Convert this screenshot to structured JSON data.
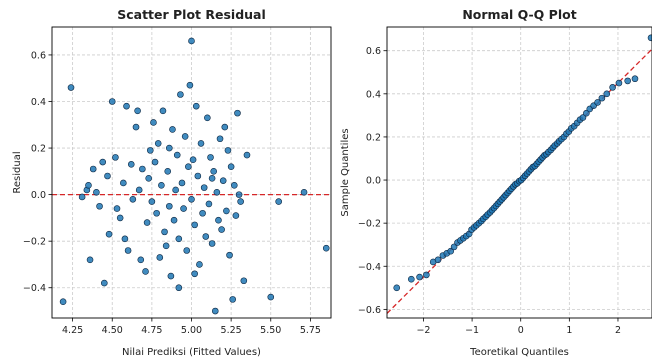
{
  "chart_data": [
    {
      "type": "scatter",
      "title": "Scatter Plot Residual",
      "xlabel": "Nilai Prediksi (Fitted Values)",
      "ylabel": "Residual",
      "xlim": [
        4.12,
        5.88
      ],
      "ylim": [
        -0.53,
        0.72
      ],
      "xticks": [
        "4.25",
        "4.50",
        "4.75",
        "5.00",
        "5.25",
        "5.50",
        "5.75"
      ],
      "xtick_values": [
        4.25,
        4.5,
        4.75,
        5.0,
        5.25,
        5.5,
        5.75
      ],
      "yticks": [
        "−0.4",
        "−0.2",
        "0.0",
        "0.2",
        "0.4",
        "0.6"
      ],
      "ytick_values": [
        -0.4,
        -0.2,
        0.0,
        0.2,
        0.4,
        0.6
      ],
      "grid": true,
      "reference_line": {
        "y": 0.0,
        "style": "dashed",
        "color": "#d62728"
      },
      "marker_color": "#1f77b4",
      "points": [
        {
          "x": 4.19,
          "y": -0.46
        },
        {
          "x": 4.24,
          "y": 0.46
        },
        {
          "x": 4.31,
          "y": -0.01
        },
        {
          "x": 4.34,
          "y": 0.02
        },
        {
          "x": 4.35,
          "y": 0.04
        },
        {
          "x": 4.36,
          "y": -0.28
        },
        {
          "x": 4.38,
          "y": 0.11
        },
        {
          "x": 4.4,
          "y": 0.01
        },
        {
          "x": 4.42,
          "y": -0.05
        },
        {
          "x": 4.44,
          "y": 0.14
        },
        {
          "x": 4.45,
          "y": -0.38
        },
        {
          "x": 4.47,
          "y": 0.08
        },
        {
          "x": 4.48,
          "y": -0.17
        },
        {
          "x": 4.5,
          "y": 0.4
        },
        {
          "x": 4.52,
          "y": 0.16
        },
        {
          "x": 4.53,
          "y": -0.06
        },
        {
          "x": 4.55,
          "y": -0.1
        },
        {
          "x": 4.57,
          "y": 0.05
        },
        {
          "x": 4.59,
          "y": 0.38
        },
        {
          "x": 4.6,
          "y": -0.24
        },
        {
          "x": 4.62,
          "y": 0.13
        },
        {
          "x": 4.63,
          "y": -0.02
        },
        {
          "x": 4.65,
          "y": 0.29
        },
        {
          "x": 4.66,
          "y": 0.36
        },
        {
          "x": 4.68,
          "y": -0.28
        },
        {
          "x": 4.69,
          "y": 0.11
        },
        {
          "x": 4.71,
          "y": -0.33
        },
        {
          "x": 4.72,
          "y": -0.12
        },
        {
          "x": 4.73,
          "y": 0.07
        },
        {
          "x": 4.74,
          "y": 0.19
        },
        {
          "x": 4.75,
          "y": -0.03
        },
        {
          "x": 4.76,
          "y": 0.31
        },
        {
          "x": 4.77,
          "y": 0.14
        },
        {
          "x": 4.78,
          "y": -0.08
        },
        {
          "x": 4.79,
          "y": 0.22
        },
        {
          "x": 4.8,
          "y": -0.27
        },
        {
          "x": 4.81,
          "y": 0.04
        },
        {
          "x": 4.82,
          "y": 0.36
        },
        {
          "x": 4.83,
          "y": -0.16
        },
        {
          "x": 4.84,
          "y": -0.22
        },
        {
          "x": 4.85,
          "y": 0.1
        },
        {
          "x": 4.86,
          "y": 0.2
        },
        {
          "x": 4.87,
          "y": -0.35
        },
        {
          "x": 4.88,
          "y": 0.28
        },
        {
          "x": 4.89,
          "y": -0.11
        },
        {
          "x": 4.9,
          "y": 0.02
        },
        {
          "x": 4.91,
          "y": 0.17
        },
        {
          "x": 4.92,
          "y": -0.19
        },
        {
          "x": 4.93,
          "y": 0.43
        },
        {
          "x": 4.94,
          "y": 0.05
        },
        {
          "x": 4.95,
          "y": -0.06
        },
        {
          "x": 4.96,
          "y": 0.25
        },
        {
          "x": 4.97,
          "y": -0.24
        },
        {
          "x": 4.98,
          "y": 0.12
        },
        {
          "x": 4.99,
          "y": 0.47
        },
        {
          "x": 5.0,
          "y": 0.66
        },
        {
          "x": 5.0,
          "y": -0.02
        },
        {
          "x": 5.01,
          "y": 0.15
        },
        {
          "x": 5.02,
          "y": -0.13
        },
        {
          "x": 5.03,
          "y": 0.38
        },
        {
          "x": 5.04,
          "y": 0.08
        },
        {
          "x": 5.05,
          "y": -0.3
        },
        {
          "x": 5.06,
          "y": 0.22
        },
        {
          "x": 5.07,
          "y": -0.08
        },
        {
          "x": 5.08,
          "y": 0.03
        },
        {
          "x": 5.09,
          "y": -0.18
        },
        {
          "x": 5.1,
          "y": 0.33
        },
        {
          "x": 5.11,
          "y": -0.04
        },
        {
          "x": 5.12,
          "y": 0.16
        },
        {
          "x": 5.13,
          "y": -0.21
        },
        {
          "x": 5.14,
          "y": 0.1
        },
        {
          "x": 5.15,
          "y": -0.5
        },
        {
          "x": 5.16,
          "y": 0.01
        },
        {
          "x": 5.17,
          "y": -0.11
        },
        {
          "x": 5.18,
          "y": 0.24
        },
        {
          "x": 5.19,
          "y": -0.15
        },
        {
          "x": 5.2,
          "y": 0.06
        },
        {
          "x": 5.21,
          "y": 0.29
        },
        {
          "x": 5.22,
          "y": -0.07
        },
        {
          "x": 5.23,
          "y": 0.19
        },
        {
          "x": 5.24,
          "y": -0.26
        },
        {
          "x": 5.25,
          "y": 0.12
        },
        {
          "x": 5.26,
          "y": -0.45
        },
        {
          "x": 5.27,
          "y": 0.04
        },
        {
          "x": 5.28,
          "y": -0.09
        },
        {
          "x": 5.29,
          "y": 0.35
        },
        {
          "x": 5.3,
          "y": 0.0
        },
        {
          "x": 5.31,
          "y": -0.03
        },
        {
          "x": 5.33,
          "y": -0.37
        },
        {
          "x": 5.35,
          "y": 0.17
        },
        {
          "x": 5.5,
          "y": -0.44
        },
        {
          "x": 5.55,
          "y": -0.03
        },
        {
          "x": 5.71,
          "y": 0.01
        },
        {
          "x": 5.85,
          "y": -0.23
        },
        {
          "x": 4.58,
          "y": -0.19
        },
        {
          "x": 4.67,
          "y": 0.02
        },
        {
          "x": 4.92,
          "y": -0.4
        },
        {
          "x": 5.02,
          "y": -0.34
        },
        {
          "x": 4.86,
          "y": -0.05
        },
        {
          "x": 5.13,
          "y": 0.07
        }
      ]
    },
    {
      "type": "scatter",
      "title": "Normal Q-Q Plot",
      "xlabel": "Teoretikal Quantiles",
      "ylabel": "Sample Quantiles",
      "xlim": [
        -2.75,
        2.7
      ],
      "ylim": [
        -0.64,
        0.71
      ],
      "xticks": [
        "−2",
        "−1",
        "0",
        "1",
        "2"
      ],
      "xtick_values": [
        -2,
        -1,
        0,
        1,
        2
      ],
      "yticks": [
        "−0.6",
        "−0.4",
        "−0.2",
        "0.0",
        "0.2",
        "0.4",
        "0.6"
      ],
      "ytick_values": [
        -0.6,
        -0.4,
        -0.2,
        0.0,
        0.2,
        0.4,
        0.6
      ],
      "grid": true,
      "reference_line": {
        "slope": 0.225,
        "intercept": 0.0,
        "style": "dashed",
        "color": "#d62728"
      },
      "marker_color": "#1f77b4",
      "points": [
        {
          "x": -2.55,
          "y": -0.5
        },
        {
          "x": -2.25,
          "y": -0.46
        },
        {
          "x": -2.08,
          "y": -0.45
        },
        {
          "x": -1.94,
          "y": -0.44
        },
        {
          "x": -1.8,
          "y": -0.38
        },
        {
          "x": -1.7,
          "y": -0.37
        },
        {
          "x": -1.6,
          "y": -0.35
        },
        {
          "x": -1.52,
          "y": -0.34
        },
        {
          "x": -1.44,
          "y": -0.33
        },
        {
          "x": -1.37,
          "y": -0.31
        },
        {
          "x": -1.3,
          "y": -0.29
        },
        {
          "x": -1.24,
          "y": -0.28
        },
        {
          "x": -1.18,
          "y": -0.27
        },
        {
          "x": -1.12,
          "y": -0.26
        },
        {
          "x": -1.06,
          "y": -0.25
        },
        {
          "x": -1.01,
          "y": -0.23
        },
        {
          "x": -0.96,
          "y": -0.22
        },
        {
          "x": -0.91,
          "y": -0.21
        },
        {
          "x": -0.86,
          "y": -0.2
        },
        {
          "x": -0.81,
          "y": -0.19
        },
        {
          "x": -0.77,
          "y": -0.18
        },
        {
          "x": -0.72,
          "y": -0.17
        },
        {
          "x": -0.68,
          "y": -0.16
        },
        {
          "x": -0.63,
          "y": -0.15
        },
        {
          "x": -0.59,
          "y": -0.14
        },
        {
          "x": -0.55,
          "y": -0.13
        },
        {
          "x": -0.51,
          "y": -0.12
        },
        {
          "x": -0.47,
          "y": -0.11
        },
        {
          "x": -0.43,
          "y": -0.1
        },
        {
          "x": -0.39,
          "y": -0.09
        },
        {
          "x": -0.35,
          "y": -0.08
        },
        {
          "x": -0.31,
          "y": -0.07
        },
        {
          "x": -0.27,
          "y": -0.06
        },
        {
          "x": -0.23,
          "y": -0.05
        },
        {
          "x": -0.19,
          "y": -0.04
        },
        {
          "x": -0.15,
          "y": -0.03
        },
        {
          "x": -0.11,
          "y": -0.02
        },
        {
          "x": -0.07,
          "y": -0.015
        },
        {
          "x": -0.03,
          "y": -0.005
        },
        {
          "x": 0.01,
          "y": 0.0
        },
        {
          "x": 0.05,
          "y": 0.01
        },
        {
          "x": 0.09,
          "y": 0.02
        },
        {
          "x": 0.13,
          "y": 0.03
        },
        {
          "x": 0.17,
          "y": 0.04
        },
        {
          "x": 0.21,
          "y": 0.05
        },
        {
          "x": 0.25,
          "y": 0.06
        },
        {
          "x": 0.29,
          "y": 0.065
        },
        {
          "x": 0.33,
          "y": 0.075
        },
        {
          "x": 0.37,
          "y": 0.085
        },
        {
          "x": 0.41,
          "y": 0.095
        },
        {
          "x": 0.45,
          "y": 0.105
        },
        {
          "x": 0.49,
          "y": 0.115
        },
        {
          "x": 0.53,
          "y": 0.12
        },
        {
          "x": 0.57,
          "y": 0.13
        },
        {
          "x": 0.62,
          "y": 0.14
        },
        {
          "x": 0.66,
          "y": 0.15
        },
        {
          "x": 0.7,
          "y": 0.16
        },
        {
          "x": 0.75,
          "y": 0.17
        },
        {
          "x": 0.79,
          "y": 0.18
        },
        {
          "x": 0.84,
          "y": 0.19
        },
        {
          "x": 0.89,
          "y": 0.2
        },
        {
          "x": 0.94,
          "y": 0.215
        },
        {
          "x": 0.99,
          "y": 0.225
        },
        {
          "x": 1.04,
          "y": 0.24
        },
        {
          "x": 1.1,
          "y": 0.25
        },
        {
          "x": 1.16,
          "y": 0.265
        },
        {
          "x": 1.22,
          "y": 0.28
        },
        {
          "x": 1.28,
          "y": 0.29
        },
        {
          "x": 1.35,
          "y": 0.31
        },
        {
          "x": 1.42,
          "y": 0.33
        },
        {
          "x": 1.5,
          "y": 0.345
        },
        {
          "x": 1.58,
          "y": 0.36
        },
        {
          "x": 1.67,
          "y": 0.38
        },
        {
          "x": 1.77,
          "y": 0.4
        },
        {
          "x": 1.89,
          "y": 0.43
        },
        {
          "x": 2.02,
          "y": 0.45
        },
        {
          "x": 2.2,
          "y": 0.46
        },
        {
          "x": 2.35,
          "y": 0.47
        },
        {
          "x": 2.68,
          "y": 0.66
        }
      ]
    }
  ]
}
